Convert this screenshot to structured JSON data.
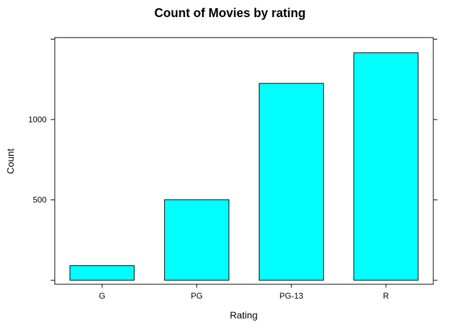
{
  "chart_data": {
    "type": "bar",
    "title": "Count of Movies by rating",
    "xlabel": "Rating",
    "ylabel": "Count",
    "categories": [
      "G",
      "PG",
      "PG-13",
      "R"
    ],
    "values": [
      91,
      501,
      1225,
      1416
    ],
    "ylim": [
      -25,
      1510
    ],
    "yticks": [
      500,
      1000
    ],
    "ytick_labels": [
      "500",
      "1000"
    ],
    "grid": false,
    "legend": "none",
    "bar_color": "#00FFFF",
    "bar_edge_color": "#000000"
  }
}
